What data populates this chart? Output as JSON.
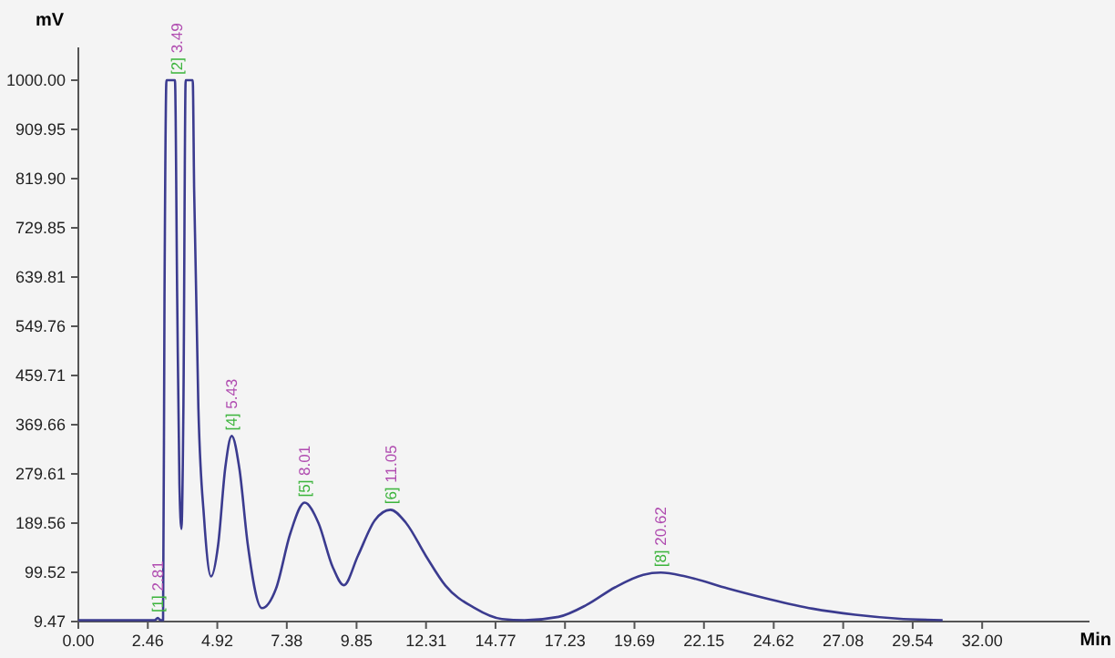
{
  "chart_data": {
    "type": "line",
    "xlabel": "Min",
    "ylabel": "mV",
    "xlim": [
      0,
      35.8
    ],
    "ylim": [
      9.47,
      1060
    ],
    "xticks": [
      {
        "value": 0,
        "label": "0.00"
      },
      2.46,
      4.92,
      7.38,
      9.85,
      12.31,
      14.77,
      17.23,
      19.69,
      22.15,
      24.62,
      27.08,
      29.54,
      {
        "value": 32,
        "label": "32.00"
      }
    ],
    "yticks": [
      9.47,
      99.52,
      189.56,
      279.61,
      369.66,
      459.71,
      549.76,
      639.81,
      729.85,
      {
        "value": 819.9,
        "label": "819.90"
      },
      909.95,
      {
        "value": 1000,
        "label": "1000.00"
      }
    ],
    "grid": false,
    "marker": "none",
    "line_style": "solid",
    "series": [
      {
        "color": "#3b3b8f",
        "x": [
          0,
          1.5,
          2.7,
          2.81,
          2.92,
          3.0,
          3.05,
          3.12,
          3.42,
          3.5,
          3.58,
          3.65,
          3.72,
          3.8,
          3.85,
          4.05,
          4.1,
          4.25,
          4.45,
          4.7,
          4.95,
          5.2,
          5.43,
          5.7,
          6.0,
          6.5,
          7.0,
          7.5,
          8.01,
          8.5,
          9.0,
          9.4,
          9.9,
          10.5,
          11.05,
          11.6,
          12.3,
          13.0,
          14.0,
          15.0,
          15.8,
          17.0,
          18.0,
          19.0,
          20.0,
          20.62,
          21.5,
          23.0,
          24.5,
          26.0,
          27.5,
          29.0,
          30.6
        ],
        "values": [
          12,
          12,
          12,
          16,
          12,
          12,
          600,
          1000,
          1000,
          600,
          260,
          179,
          400,
          1000,
          1000,
          1000,
          800,
          400,
          200,
          92,
          150,
          290,
          349,
          290,
          150,
          34,
          70,
          170,
          227,
          190,
          110,
          76,
          130,
          195,
          214,
          190,
          130,
          75,
          35,
          14,
          12,
          18,
          40,
          72,
          95,
          99,
          92,
          70,
          50,
          33,
          22,
          15,
          12
        ]
      }
    ],
    "annotations": [
      {
        "text": "[1] 2.81",
        "x": 2.81,
        "y": 16
      },
      {
        "text": "[2] 3.49",
        "x": 3.49,
        "y": 1000
      },
      {
        "text": "[4] 5.43",
        "x": 5.43,
        "y": 349
      },
      {
        "text": "[5] 8.01",
        "x": 8.01,
        "y": 227
      },
      {
        "text": "[6] 11.05",
        "x": 11.05,
        "y": 214
      },
      {
        "text": "[8] 20.62",
        "x": 20.62,
        "y": 99
      }
    ]
  }
}
